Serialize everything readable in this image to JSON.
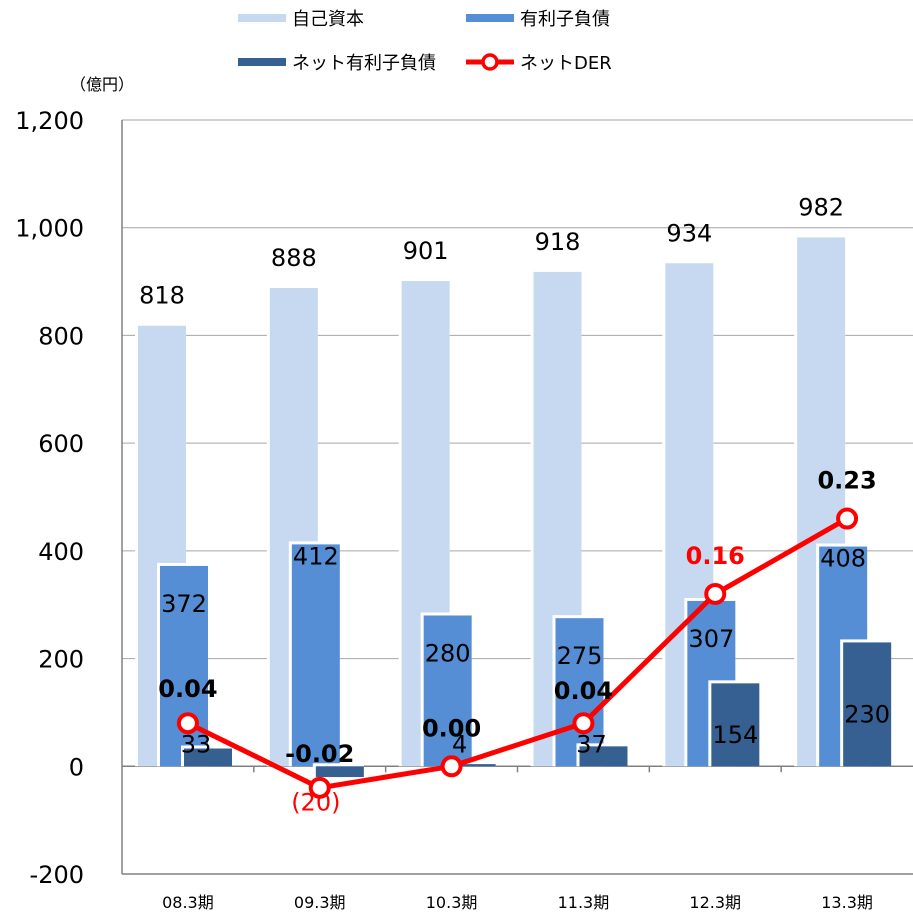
{
  "chart_data": {
    "type": "bar",
    "unit_label": "（億円）",
    "categories": [
      "08.3期",
      "09.3期",
      "10.3期",
      "11.3期",
      "12.3期",
      "13.3期"
    ],
    "ylim": [
      -200,
      1200
    ],
    "yticks": [
      "-200",
      "0",
      "200",
      "400",
      "600",
      "800",
      "1,000",
      "1,200"
    ],
    "ytick_values": [
      -200,
      0,
      200,
      400,
      600,
      800,
      1000,
      1200
    ],
    "grid": true,
    "legend_position": "top",
    "series": [
      {
        "name": "自己資本",
        "kind": "bar",
        "color": "#c6d9f1",
        "values": [
          818,
          888,
          901,
          918,
          934,
          982
        ],
        "labels": [
          "818",
          "888",
          "901",
          "918",
          "934",
          "982"
        ]
      },
      {
        "name": "有利子負債",
        "kind": "bar",
        "color": "#558ed5",
        "values": [
          372,
          412,
          280,
          275,
          307,
          408
        ],
        "labels": [
          "372",
          "412",
          "280",
          "275",
          "307",
          "408"
        ]
      },
      {
        "name": "ネット有利子負債",
        "kind": "bar",
        "color": "#376092",
        "values": [
          33,
          -20,
          4,
          37,
          154,
          230
        ],
        "labels": [
          "33",
          "(20)",
          "4",
          "37",
          "154",
          "230"
        ]
      },
      {
        "name": "ネットDER",
        "kind": "line",
        "color": "#ff0000",
        "values": [
          0.04,
          -0.02,
          0.0,
          0.04,
          0.16,
          0.23
        ],
        "labels": [
          "0.04",
          "-0.02",
          "0.00",
          "0.04",
          "0.16",
          "0.23"
        ]
      }
    ]
  }
}
